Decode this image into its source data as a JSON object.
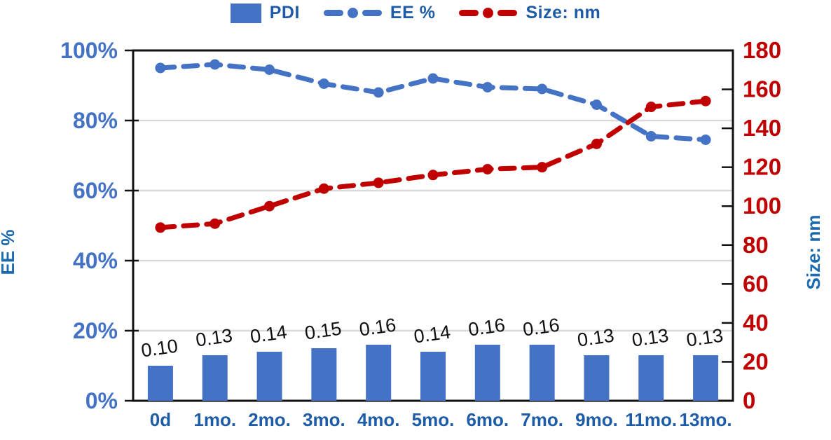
{
  "chart_data": {
    "type": "bar",
    "subtype": "combo-bar-line-dual-axis",
    "title": "",
    "categories": [
      "0d",
      "1mo.",
      "2mo.",
      "3mo.",
      "4mo.",
      "5mo.",
      "6mo.",
      "7mo.",
      "9mo.",
      "11mo.",
      "13mo."
    ],
    "series": [
      {
        "name": "PDI",
        "type": "bar",
        "axis": "left-percent-scaled",
        "color": "#4472C4",
        "values": [
          0.1,
          0.13,
          0.14,
          0.15,
          0.16,
          0.14,
          0.16,
          0.16,
          0.13,
          0.13,
          0.13
        ],
        "labels": [
          "0.10",
          "0.13",
          "0.14",
          "0.15",
          "0.16",
          "0.14",
          "0.16",
          "0.16",
          "0.13",
          "0.13",
          "0.13"
        ]
      },
      {
        "name": "EE %",
        "type": "line",
        "axis": "left",
        "color": "#4472C4",
        "values": [
          95,
          96,
          94.5,
          90.5,
          88,
          92,
          89.5,
          89,
          84.5,
          75.5,
          74.5
        ]
      },
      {
        "name": "Size: nm",
        "type": "line",
        "axis": "right",
        "color": "#C00000",
        "values": [
          89,
          91,
          100,
          109,
          112,
          116,
          119,
          120,
          132,
          151,
          154
        ]
      }
    ],
    "left_axis": {
      "title": "EE %",
      "min": 0,
      "max": 100,
      "step": 20,
      "tick_suffix": "%",
      "tick_labels": [
        "0%",
        "20%",
        "40%",
        "60%",
        "80%",
        "100%"
      ],
      "tick_color": "#4472C4",
      "title_color": "#1C6BB0"
    },
    "right_axis": {
      "title": "Size: nm",
      "min": 0,
      "max": 180,
      "step": 20,
      "tick_labels": [
        "0",
        "20",
        "40",
        "60",
        "80",
        "100",
        "120",
        "140",
        "160",
        "180"
      ],
      "tick_color": "#C00000",
      "title_color": "#1C6BB0"
    },
    "x_axis": {
      "tick_color": "#1F5CA8"
    },
    "grid": true,
    "grid_color": "#D9D9D9",
    "frame_color": "#111111",
    "legend_position": "top",
    "bar_label_color": "#111111"
  }
}
